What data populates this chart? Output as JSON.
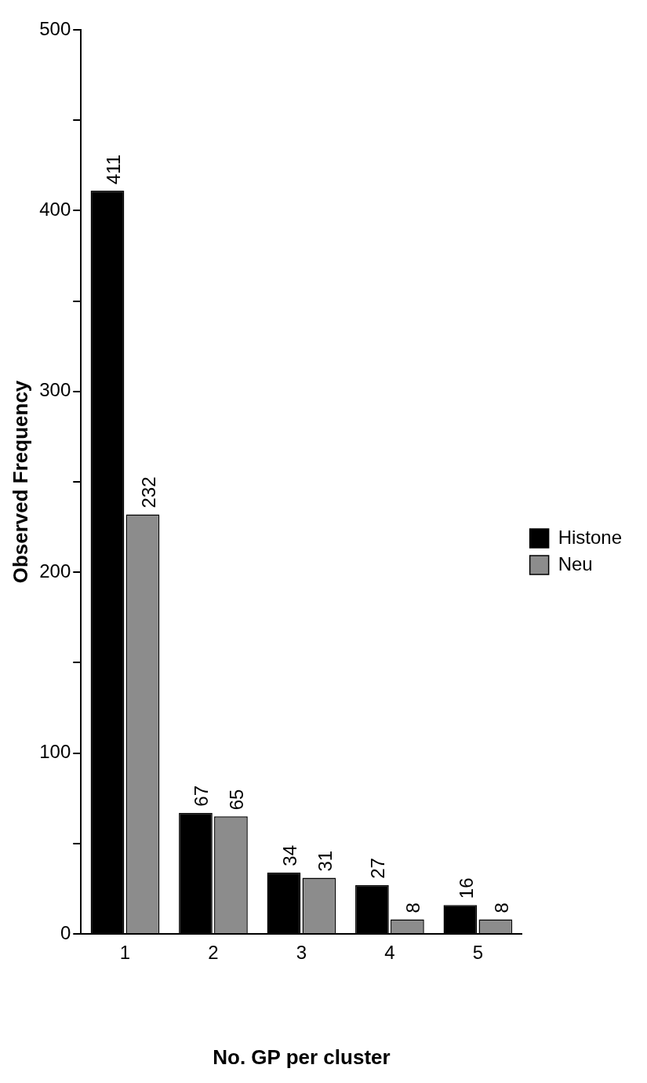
{
  "chart_data": {
    "type": "bar",
    "xlabel": "No. GP per cluster",
    "ylabel": "Observed Frequency",
    "categories": [
      "1",
      "2",
      "3",
      "4",
      "5"
    ],
    "series": [
      {
        "name": "Histone",
        "color": "#000000",
        "values": [
          411,
          67,
          34,
          27,
          16
        ]
      },
      {
        "name": "Neu",
        "color": "#8c8c8c",
        "values": [
          232,
          65,
          31,
          8,
          8
        ]
      }
    ],
    "ylim": [
      0,
      500
    ],
    "yticks": [
      0,
      {
        "value": 50,
        "label": null
      },
      100,
      {
        "value": 150,
        "label": null
      },
      200,
      {
        "value": 250,
        "label": null
      },
      300,
      {
        "value": 350,
        "label": null
      },
      400,
      {
        "value": 450,
        "label": null
      },
      500
    ],
    "grid": false,
    "legend": "right",
    "data_labels": true
  }
}
